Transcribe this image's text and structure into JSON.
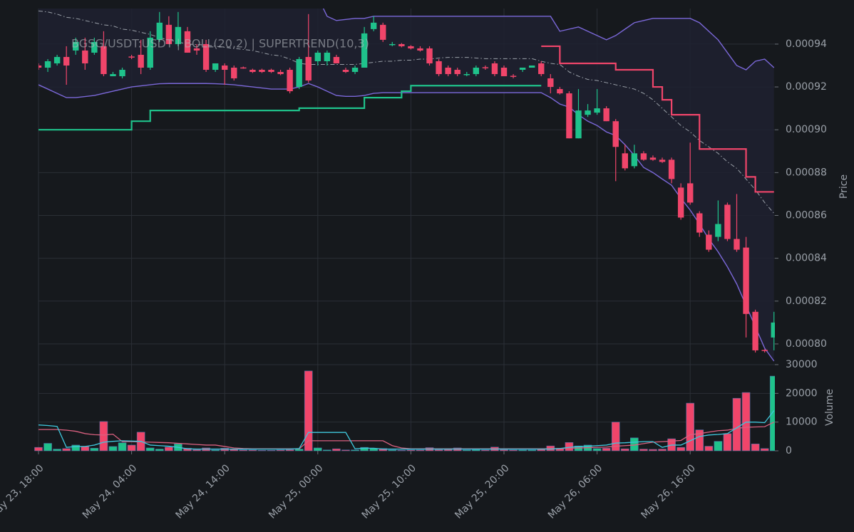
{
  "chart_data": {
    "type": "candlestick",
    "title": "BGSG/USDT:USDT | BOLL(20,2) | SUPERTREND(10,3)",
    "x": [
      "May 23, 18:00",
      "May 23, 19:00",
      "May 23, 20:00",
      "May 23, 21:00",
      "May 23, 22:00",
      "May 23, 23:00",
      "May 24, 00:00",
      "May 24, 01:00",
      "May 24, 02:00",
      "May 24, 03:00",
      "May 24, 04:00",
      "May 24, 05:00",
      "May 24, 06:00",
      "May 24, 07:00",
      "May 24, 08:00",
      "May 24, 09:00",
      "May 24, 10:00",
      "May 24, 11:00",
      "May 24, 12:00",
      "May 24, 13:00",
      "May 24, 14:00",
      "May 24, 15:00",
      "May 24, 16:00",
      "May 24, 17:00",
      "May 24, 18:00",
      "May 24, 19:00",
      "May 24, 20:00",
      "May 24, 21:00",
      "May 24, 22:00",
      "May 24, 23:00",
      "May 25, 00:00",
      "May 25, 01:00",
      "May 25, 02:00",
      "May 25, 03:00",
      "May 25, 04:00",
      "May 25, 05:00",
      "May 25, 06:00",
      "May 25, 07:00",
      "May 25, 08:00",
      "May 25, 09:00",
      "May 25, 10:00",
      "May 25, 11:00",
      "May 25, 12:00",
      "May 25, 13:00",
      "May 25, 14:00",
      "May 25, 15:00",
      "May 25, 16:00",
      "May 25, 17:00",
      "May 25, 18:00",
      "May 25, 19:00",
      "May 25, 20:00",
      "May 25, 21:00",
      "May 25, 22:00",
      "May 25, 23:00",
      "May 26, 00:00",
      "May 26, 01:00",
      "May 26, 02:00",
      "May 26, 03:00",
      "May 26, 04:00",
      "May 26, 05:00",
      "May 26, 06:00",
      "May 26, 07:00",
      "May 26, 08:00",
      "May 26, 09:00",
      "May 26, 10:00",
      "May 26, 11:00",
      "May 26, 12:00",
      "May 26, 13:00",
      "May 26, 14:00",
      "May 26, 15:00",
      "May 26, 16:00",
      "May 26, 17:00",
      "May 26, 18:00",
      "May 26, 19:00",
      "May 26, 20:00",
      "May 26, 21:00",
      "May 26, 22:00",
      "May 26, 23:00",
      "May 27, 00:00",
      "May 27, 01:00"
    ],
    "xticks": [
      0,
      10,
      20,
      30,
      40,
      50,
      60,
      70
    ],
    "open": [
      0.00093,
      0.000929,
      0.000931,
      0.000934,
      0.000937,
      0.000937,
      0.000936,
      0.000939,
      0.000925,
      0.000925,
      0.0009342,
      0.000935,
      0.000929,
      0.000942,
      0.000949,
      0.00094,
      0.000946,
      0.000938,
      0.00094,
      0.000928,
      0.00093,
      0.000929,
      0.0009291,
      0.000928,
      0.000928,
      0.000928,
      0.000927,
      0.000928,
      0.00092,
      0.000934,
      0.000932,
      0.000932,
      0.000934,
      0.000928,
      0.000927,
      0.000929,
      0.000947,
      0.000949,
      0.00094,
      0.00094,
      0.000939,
      0.000938,
      0.000938,
      0.000932,
      0.000929,
      0.000928,
      0.000926,
      0.000926,
      0.0009292,
      0.000931,
      0.000929,
      0.0009252,
      0.000928,
      0.000929,
      0.000931,
      0.000924,
      0.000919,
      0.000917,
      0.000896,
      0.000907,
      0.000908,
      0.00091,
      0.000904,
      0.000889,
      0.000883,
      0.000889,
      0.000887,
      0.000886,
      0.000886,
      0.000873,
      0.000875,
      0.000861,
      0.000851,
      0.00085,
      0.000865,
      0.000849,
      0.000845,
      0.000815,
      0.0007972,
      0.000803
    ],
    "high": [
      0.000931,
      0.000933,
      0.000935,
      0.000939,
      0.000943,
      0.000943,
      0.000943,
      0.000946,
      0.000927,
      0.000929,
      0.000935,
      0.000942,
      0.000946,
      0.000955,
      0.000953,
      0.000955,
      0.000948,
      0.00094,
      0.000942,
      0.000931,
      0.000931,
      0.00093,
      0.0009295,
      0.0009285,
      0.0009285,
      0.0009285,
      0.000928,
      0.000929,
      0.000934,
      0.000954,
      0.000937,
      0.000937,
      0.000935,
      0.000929,
      0.00093,
      0.000948,
      0.000953,
      0.00095,
      0.000941,
      0.0009405,
      0.0009395,
      0.000939,
      0.000939,
      0.000933,
      0.00093,
      0.000929,
      0.000927,
      0.00093,
      0.00093,
      0.000932,
      0.00093,
      0.000926,
      0.000929,
      0.00093,
      0.000932,
      0.000926,
      0.00092,
      0.000918,
      0.000919,
      0.000912,
      0.000919,
      0.000911,
      0.000905,
      0.000893,
      0.000893,
      0.00089,
      0.000888,
      0.000887,
      0.000887,
      0.000875,
      0.000894,
      0.000862,
      0.000853,
      0.000867,
      0.000866,
      0.00087,
      0.00085,
      0.000816,
      0.0007975,
      0.000815
    ],
    "low": [
      0.000928,
      0.000927,
      0.00093,
      0.000921,
      0.000935,
      0.000928,
      0.000935,
      0.000925,
      0.000925,
      0.000924,
      0.000933,
      0.000926,
      0.000928,
      0.000941,
      0.00094,
      0.000939,
      0.000936,
      0.000935,
      0.000927,
      0.000927,
      0.000921,
      0.000923,
      0.0009285,
      0.0009265,
      0.0009265,
      0.0009265,
      0.0009255,
      0.000917,
      0.000919,
      0.000922,
      0.00093,
      0.00093,
      0.000931,
      0.0009265,
      0.000926,
      0.000929,
      0.000946,
      0.000941,
      0.000939,
      0.0009385,
      0.0009375,
      0.0009365,
      0.00093,
      0.000925,
      0.000925,
      0.000925,
      0.000925,
      0.000925,
      0.000928,
      0.000925,
      0.000925,
      0.000924,
      0.000927,
      0.000929,
      0.000925,
      0.000917,
      0.0009165,
      0.000896,
      0.000896,
      0.000906,
      0.000907,
      0.000904,
      0.000876,
      0.000881,
      0.000882,
      0.0008855,
      0.0008855,
      0.0008845,
      0.000875,
      0.000858,
      0.000865,
      0.00085,
      0.000843,
      0.000848,
      0.000848,
      0.000843,
      0.000803,
      0.000796,
      0.000796,
      0.000797
    ],
    "close": [
      0.000929,
      0.000932,
      0.000934,
      0.00093,
      0.000941,
      0.000931,
      0.000941,
      0.000926,
      0.000926,
      0.000928,
      0.000934,
      0.000929,
      0.000943,
      0.00095,
      0.00094,
      0.000948,
      0.000936,
      0.000937,
      0.000928,
      0.000931,
      0.000928,
      0.000924,
      0.000929,
      0.000927,
      0.000927,
      0.000927,
      0.000926,
      0.000918,
      0.000933,
      0.000923,
      0.000936,
      0.000936,
      0.000931,
      0.000927,
      0.000929,
      0.000945,
      0.00095,
      0.000942,
      0.00094,
      0.000939,
      0.000938,
      0.000937,
      0.000931,
      0.000926,
      0.000926,
      0.000926,
      0.000926,
      0.000929,
      0.000929,
      0.000926,
      0.000925,
      0.000925,
      0.000929,
      0.00093,
      0.000926,
      0.00092,
      0.000917,
      0.000896,
      0.000909,
      0.000909,
      0.00091,
      0.000904,
      0.000892,
      0.000882,
      0.000889,
      0.000886,
      0.000886,
      0.000885,
      0.000877,
      0.000859,
      0.000866,
      0.000852,
      0.000844,
      0.000856,
      0.000849,
      0.000844,
      0.000814,
      0.000797,
      0.000797,
      0.00081
    ],
    "up_color": "#1fc28b",
    "down_color": "#f0456a",
    "ylim": [
      0.000791,
      0.0009566
    ],
    "yticks": [
      {
        "value": 0.0008,
        "label": "0.00080"
      },
      {
        "value": 0.00082,
        "label": "0.00082"
      },
      {
        "value": 0.00084,
        "label": "0.00084"
      },
      {
        "value": 0.00086,
        "label": "0.00086"
      },
      {
        "value": 0.00088,
        "label": "0.00088"
      },
      {
        "value": 0.0009,
        "label": "0.00090"
      },
      {
        "value": 0.00092,
        "label": "0.00092"
      },
      {
        "value": 0.00094,
        "label": "0.00094"
      }
    ],
    "ylabel": "Price",
    "grid": true,
    "bollinger": {
      "color": "#7b68d9",
      "middle_color": "#9aa0a8",
      "middle_style": "dashdot",
      "fill": "#1e2130",
      "upper": [
        0.00096,
        0.00096,
        0.000959,
        0.000959,
        0.000958,
        0.000958,
        0.000958,
        0.000958,
        0.0009575,
        0.000957,
        0.000957,
        0.000957,
        0.000962,
        0.000962,
        0.000962,
        0.000962,
        0.000962,
        0.000962,
        0.000962,
        0.000962,
        0.000962,
        0.000962,
        0.000962,
        0.000962,
        0.000962,
        0.000962,
        0.000962,
        0.000962,
        0.000962,
        0.000962,
        0.000962,
        0.000953,
        0.000951,
        0.0009515,
        0.000952,
        0.000952,
        0.000953,
        0.000953,
        0.000953,
        0.000953,
        0.000953,
        0.000953,
        0.000953,
        0.000953,
        0.000953,
        0.000953,
        0.000953,
        0.000953,
        0.000953,
        0.000953,
        0.000953,
        0.000953,
        0.000953,
        0.000953,
        0.000953,
        0.000953,
        0.000946,
        0.000947,
        0.000948,
        0.000946,
        0.000944,
        0.000942,
        0.000944,
        0.000947,
        0.00095,
        0.000951,
        0.000952,
        0.000952,
        0.000952,
        0.000952,
        0.000952,
        0.00095,
        0.000946,
        0.000942,
        0.000936,
        0.00093,
        0.000928,
        0.000932,
        0.000933,
        0.000929
      ],
      "middle": [
        0.0009555,
        0.000955,
        0.000954,
        0.0009525,
        0.000952,
        0.000951,
        0.00095,
        0.000949,
        0.0009485,
        0.000947,
        0.0009465,
        0.0009455,
        0.0009445,
        0.000943,
        0.000942,
        0.000941,
        0.00094,
        0.0009398,
        0.0009395,
        0.000939,
        0.0009385,
        0.000938,
        0.0009375,
        0.000937,
        0.000936,
        0.000935,
        0.0009345,
        0.000933,
        0.000931,
        0.0009305,
        0.0009305,
        0.0009305,
        0.0009305,
        0.0009305,
        0.0009305,
        0.000931,
        0.0009315,
        0.000932,
        0.000932,
        0.0009325,
        0.0009325,
        0.000933,
        0.000933,
        0.0009335,
        0.0009338,
        0.0009338,
        0.0009338,
        0.0009335,
        0.0009332,
        0.0009332,
        0.0009332,
        0.0009332,
        0.0009332,
        0.0009332,
        0.000932,
        0.000931,
        0.0009305,
        0.000927,
        0.000925,
        0.0009235,
        0.000923,
        0.000922,
        0.000921,
        0.00092,
        0.000919,
        0.000917,
        0.000914,
        0.00091,
        0.000906,
        0.000902,
        0.000899,
        0.000895,
        0.000892,
        0.000889,
        0.000885,
        0.000882,
        0.000877,
        0.000872,
        0.000866,
        0.000861
      ],
      "lower": [
        0.000921,
        0.000919,
        0.000917,
        0.000915,
        0.000915,
        0.0009155,
        0.000916,
        0.000917,
        0.000918,
        0.000919,
        0.00092,
        0.0009205,
        0.000921,
        0.0009215,
        0.0009216,
        0.0009216,
        0.0009216,
        0.0009216,
        0.0009216,
        0.0009215,
        0.0009213,
        0.000921,
        0.0009205,
        0.00092,
        0.0009195,
        0.000919,
        0.000919,
        0.000919,
        0.00092,
        0.0009216,
        0.00092,
        0.000918,
        0.000916,
        0.0009156,
        0.0009156,
        0.000916,
        0.000917,
        0.0009173,
        0.0009173,
        0.0009173,
        0.0009173,
        0.0009173,
        0.0009173,
        0.0009173,
        0.0009173,
        0.0009173,
        0.0009173,
        0.0009173,
        0.0009173,
        0.0009173,
        0.0009173,
        0.0009173,
        0.0009173,
        0.0009173,
        0.0009173,
        0.000915,
        0.000912,
        0.0009106,
        0.000907,
        0.000904,
        0.000902,
        0.000899,
        0.0008973,
        0.000893,
        0.000888,
        0.0008824,
        0.00088,
        0.000877,
        0.0008741,
        0.000868,
        0.0008625,
        0.000856,
        0.000849,
        0.000843,
        0.000836,
        0.000828,
        0.000818,
        0.000808,
        0.000798,
        0.000792
      ]
    },
    "supertrend": {
      "up_color": "#1fc28b",
      "down_color": "#f0456a",
      "up": [
        0.0009,
        0.0009,
        0.0009,
        0.0009,
        0.0009,
        0.0009,
        0.0009,
        0.0009,
        0.0009,
        0.0009,
        0.000904,
        0.000904,
        0.000909,
        0.000909,
        0.000909,
        0.000909,
        0.000909,
        0.000909,
        0.000909,
        0.000909,
        0.000909,
        0.000909,
        0.000909,
        0.000909,
        0.000909,
        0.000909,
        0.000909,
        0.000909,
        0.0009101,
        0.0009101,
        0.0009101,
        0.0009101,
        0.0009101,
        0.0009101,
        0.0009101,
        0.000915,
        0.000915,
        0.000915,
        0.000915,
        0.000918,
        0.0009206,
        0.0009206,
        0.0009206,
        0.0009206,
        0.0009206,
        0.0009206,
        0.0009206,
        0.0009206,
        0.0009206,
        0.0009206,
        0.0009206,
        0.0009206,
        0.0009206,
        0.0009206,
        0.0009206,
        null,
        null,
        null,
        null,
        null,
        null,
        null,
        null,
        null,
        null,
        null,
        null,
        null,
        null,
        null,
        null,
        null,
        null,
        null,
        null,
        null,
        null,
        null,
        null,
        null
      ],
      "down": [
        null,
        null,
        null,
        null,
        null,
        null,
        null,
        null,
        null,
        null,
        null,
        null,
        null,
        null,
        null,
        null,
        null,
        null,
        null,
        null,
        null,
        null,
        null,
        null,
        null,
        null,
        null,
        null,
        null,
        null,
        null,
        null,
        null,
        null,
        null,
        null,
        null,
        null,
        null,
        null,
        null,
        null,
        null,
        null,
        null,
        null,
        null,
        null,
        null,
        null,
        null,
        null,
        null,
        null,
        0.000939,
        0.000939,
        0.000931,
        0.000931,
        0.000931,
        0.000931,
        0.000931,
        0.000931,
        0.000928,
        0.000928,
        0.000928,
        0.000928,
        0.00092,
        0.000914,
        0.000907,
        0.000907,
        0.000907,
        0.000891,
        0.000891,
        0.000891,
        0.000891,
        0.000891,
        0.000878,
        0.000871,
        0.000871,
        0.000871
      ]
    },
    "volume": {
      "ylabel": "Volume",
      "ylim": [
        0,
        30000
      ],
      "yticks": [
        0,
        10000,
        20000,
        30000
      ],
      "values": [
        1200,
        2600,
        600,
        800,
        2000,
        1500,
        900,
        10200,
        1500,
        2800,
        2000,
        6500,
        1000,
        600,
        1300,
        2400,
        900,
        400,
        1000,
        300,
        900,
        500,
        300,
        300,
        200,
        200,
        300,
        400,
        600,
        27800,
        1000,
        300,
        700,
        300,
        300,
        1200,
        800,
        800,
        300,
        200,
        300,
        300,
        1100,
        400,
        500,
        1000,
        300,
        400,
        300,
        1300,
        400,
        300,
        300,
        300,
        700,
        1700,
        900,
        2900,
        1700,
        2000,
        800,
        900,
        10000,
        700,
        4500,
        600,
        500,
        600,
        4200,
        1200,
        16600,
        7300,
        1600,
        3300,
        6000,
        18300,
        20300,
        2400,
        800,
        26000
      ],
      "series": [
        {
          "color": "#d9607f",
          "values": [
            7400,
            7400,
            7400,
            7200,
            6800,
            6000,
            5600,
            5500,
            5800,
            3200,
            3200,
            3100,
            3000,
            2900,
            2800,
            2600,
            2400,
            2200,
            2000,
            2000,
            1500,
            1000,
            800,
            700,
            700,
            700,
            700,
            700,
            700,
            3500,
            3500,
            3500,
            3500,
            3500,
            3500,
            3500,
            3500,
            3500,
            1800,
            1000,
            700,
            700,
            700,
            700,
            700,
            700,
            700,
            700,
            700,
            700,
            700,
            700,
            700,
            700,
            700,
            750,
            800,
            900,
            1000,
            1100,
            1200,
            1300,
            1600,
            1800,
            2000,
            2500,
            3000,
            3200,
            3400,
            3600,
            5600,
            6000,
            6500,
            7000,
            7200,
            7800,
            8200,
            8300,
            8400,
            10000
          ]
        },
        {
          "color": "#3fc7dc",
          "values": [
            9000,
            8800,
            8500,
            1200,
            1500,
            1500,
            2000,
            3000,
            3300,
            3500,
            3400,
            3300,
            2000,
            1800,
            1600,
            1200,
            700,
            600,
            600,
            600,
            600,
            600,
            600,
            600,
            600,
            600,
            600,
            600,
            800,
            6400,
            6400,
            6400,
            6400,
            6400,
            700,
            900,
            900,
            600,
            600,
            600,
            600,
            600,
            600,
            600,
            600,
            600,
            600,
            600,
            600,
            600,
            600,
            600,
            600,
            600,
            600,
            600,
            800,
            1200,
            1500,
            1600,
            1800,
            2000,
            2700,
            2800,
            3000,
            3200,
            3200,
            1200,
            2000,
            2000,
            3500,
            5000,
            5500,
            5700,
            6000,
            8000,
            10000,
            10000,
            9800,
            14000
          ]
        }
      ]
    }
  }
}
